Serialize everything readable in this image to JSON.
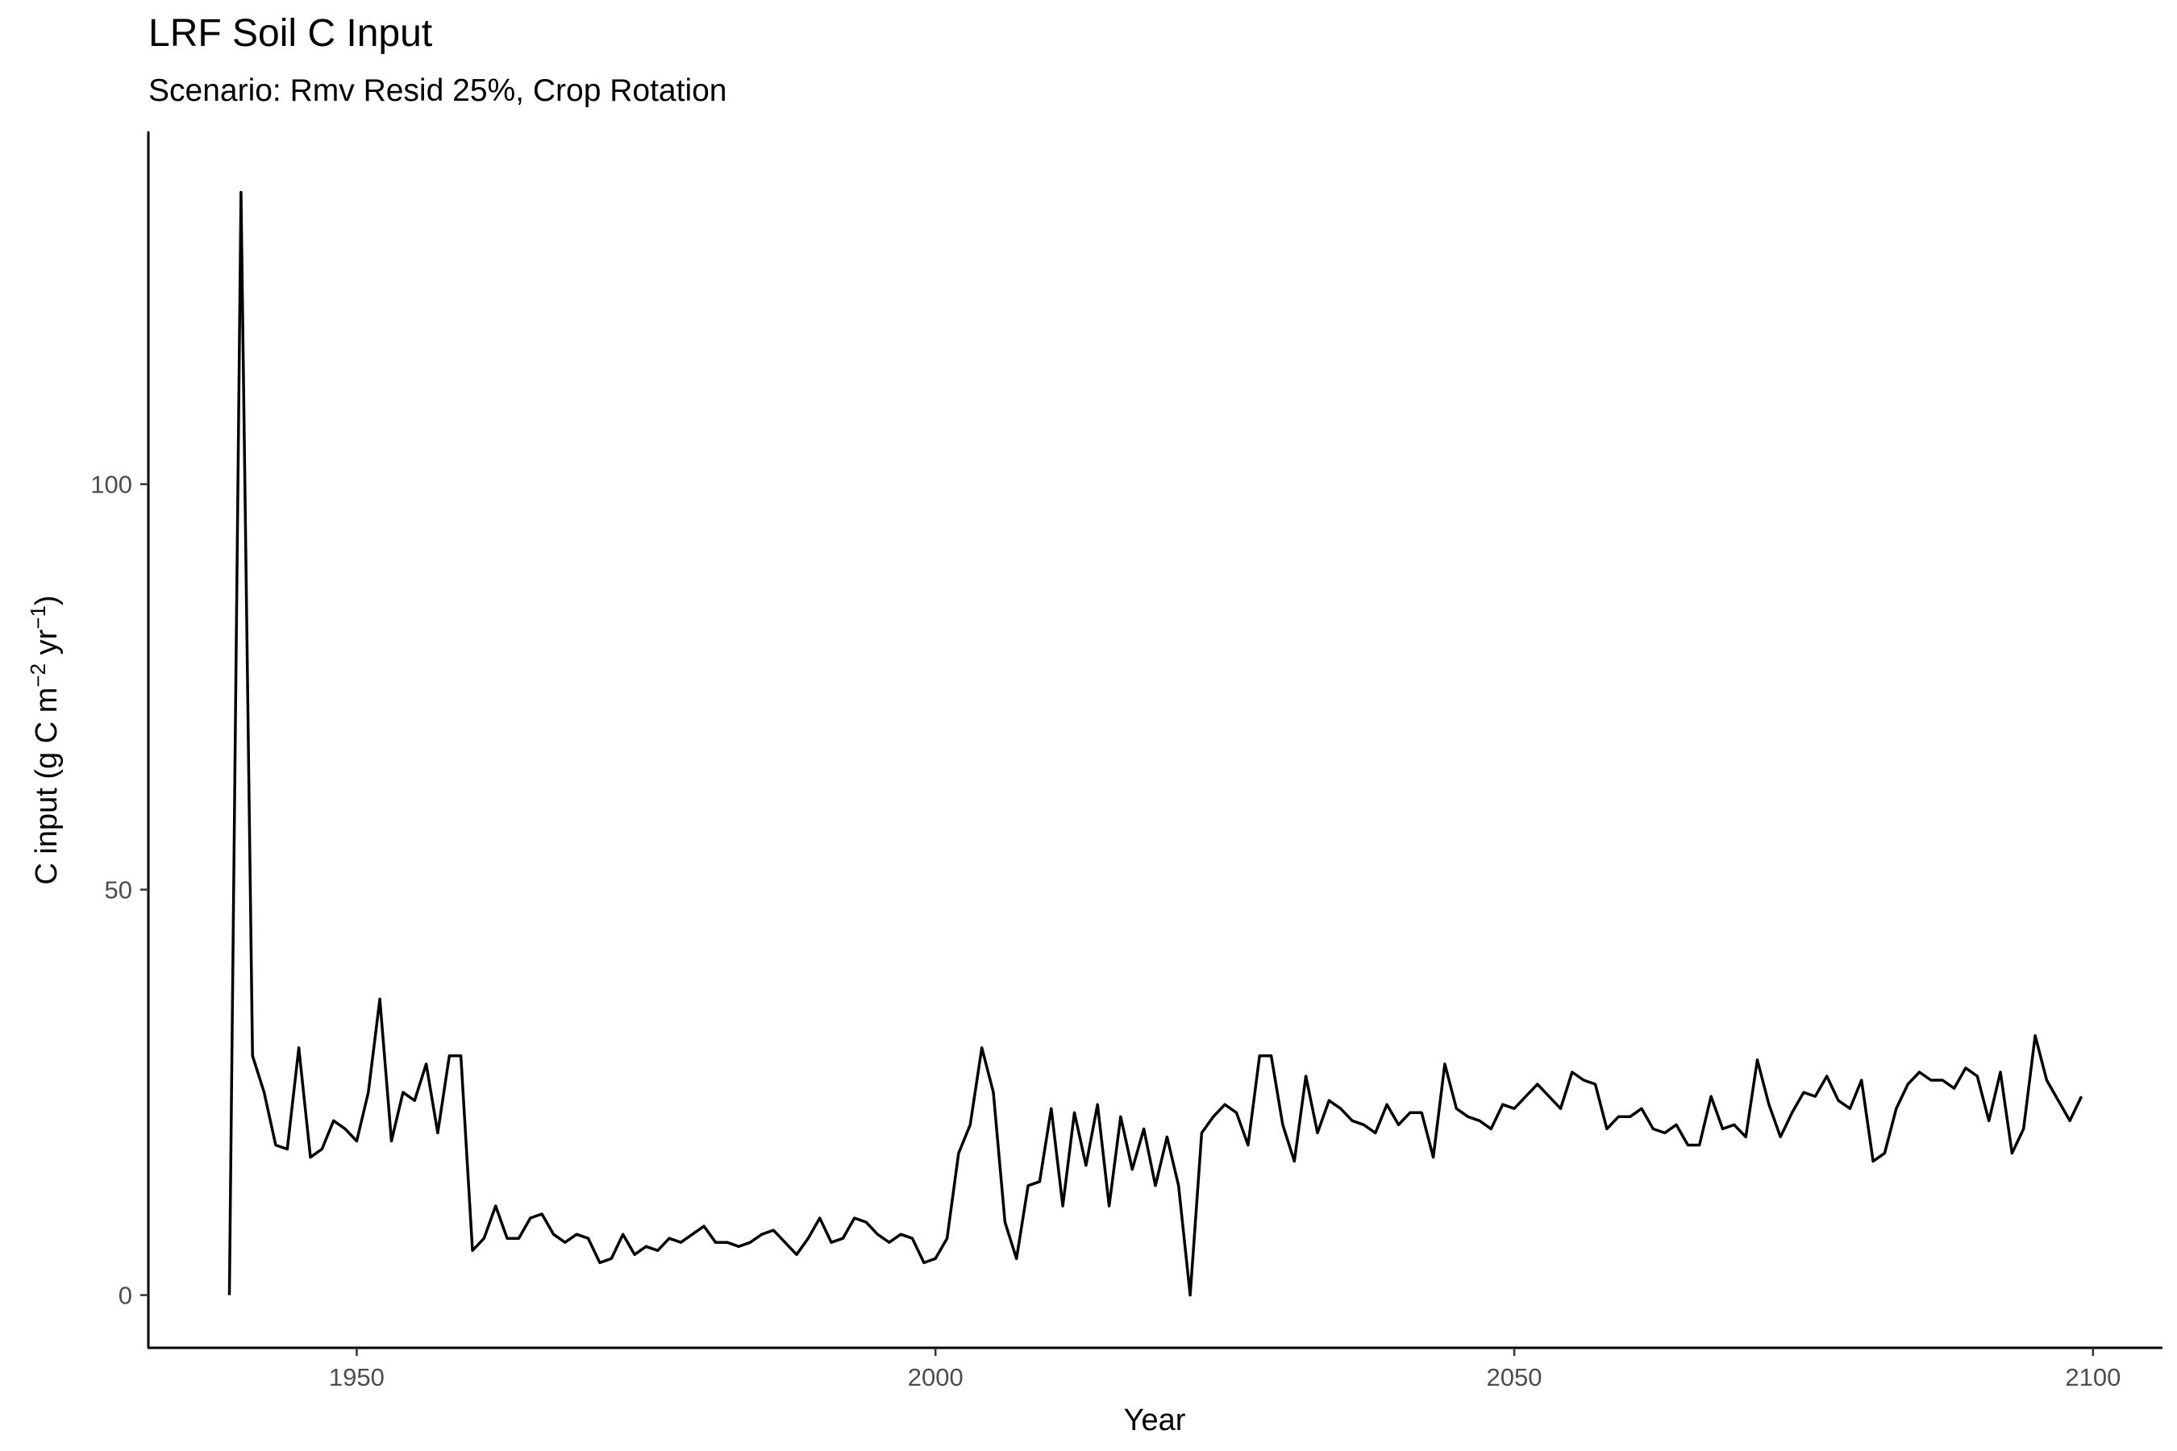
{
  "chart_data": {
    "type": "line",
    "title": "LRF Soil C Input",
    "subtitle": "Scenario: Rmv Resid 25%, Crop Rotation",
    "xlabel": "Year",
    "ylabel_main": "C input (g C m",
    "ylabel_sup1": "−2",
    "ylabel_mid": " yr",
    "ylabel_sup2": "−1",
    "ylabel_end": ")",
    "xlim": [
      1932,
      2106
    ],
    "ylim": [
      -6.5,
      143.5
    ],
    "xticks": [
      1950,
      2000,
      2050,
      2100
    ],
    "yticks": [
      0,
      50,
      100
    ],
    "grid": false,
    "line_color": "#000000",
    "series": [
      {
        "x": [
          1939,
          1940,
          1941,
          1942,
          1943,
          1944,
          1945,
          1946,
          1947,
          1948,
          1949,
          1950,
          1951,
          1952,
          1953,
          1954,
          1955,
          1956,
          1957,
          1958,
          1959,
          1960,
          1961,
          1962,
          1963,
          1964,
          1965,
          1966,
          1967,
          1968,
          1969,
          1970,
          1971,
          1972,
          1973,
          1974,
          1975,
          1976,
          1977,
          1978,
          1979,
          1980,
          1981,
          1982,
          1983,
          1984,
          1985,
          1986,
          1987,
          1988,
          1989,
          1990,
          1991,
          1992,
          1993,
          1994,
          1995,
          1996,
          1997,
          1998,
          1999,
          2000,
          2001,
          2002,
          2003,
          2004,
          2005,
          2006,
          2007,
          2008,
          2009,
          2010,
          2011,
          2012,
          2013,
          2014,
          2015,
          2016,
          2017,
          2018,
          2019,
          2020,
          2021,
          2022,
          2023,
          2024,
          2025,
          2026,
          2027,
          2028,
          2029,
          2030,
          2031,
          2032,
          2033,
          2034,
          2035,
          2036,
          2037,
          2038,
          2039,
          2040,
          2041,
          2042,
          2043,
          2044,
          2045,
          2046,
          2047,
          2048,
          2049,
          2050,
          2051,
          2052,
          2053,
          2054,
          2055,
          2056,
          2057,
          2058,
          2059,
          2060,
          2061,
          2062,
          2063,
          2064,
          2065,
          2066,
          2067,
          2068,
          2069,
          2070,
          2071,
          2072,
          2073,
          2074,
          2075,
          2076,
          2077,
          2078,
          2079,
          2080,
          2081,
          2082,
          2083,
          2084,
          2085,
          2086,
          2087,
          2088,
          2089,
          2090,
          2091,
          2092,
          2093,
          2094,
          2095,
          2096,
          2097,
          2098,
          2099
        ],
        "y": [
          0,
          136,
          29.5,
          25,
          18.5,
          18,
          30.5,
          17,
          18,
          21.5,
          20.5,
          19,
          25,
          36.5,
          19,
          25,
          24,
          28.5,
          20,
          29.5,
          29.5,
          5.5,
          7,
          11,
          7,
          7,
          9.5,
          10,
          7.5,
          6.5,
          7.5,
          7,
          4,
          4.5,
          7.5,
          5,
          6,
          5.5,
          7,
          6.5,
          7.5,
          8.5,
          6.5,
          6.5,
          6,
          6.5,
          7.5,
          8,
          6.5,
          5,
          7,
          9.5,
          6.5,
          7,
          9.5,
          9,
          7.5,
          6.5,
          7.5,
          7,
          4,
          4.5,
          7,
          17.5,
          21,
          30.5,
          25,
          9,
          4.5,
          13.5,
          14,
          23,
          11,
          22.5,
          16,
          23.5,
          11,
          22,
          15.5,
          20.5,
          13.5,
          19.5,
          13.5,
          0,
          20,
          22,
          23.5,
          22.5,
          18.5,
          29.5,
          29.5,
          21,
          16.5,
          27,
          20,
          24,
          23,
          21.5,
          21,
          20,
          23.5,
          21,
          22.5,
          22.5,
          17,
          28.5,
          23,
          22,
          21.5,
          20.5,
          23.5,
          23,
          24.5,
          26,
          24.5,
          23,
          27.5,
          26.5,
          26,
          20.5,
          22,
          22,
          23,
          20.5,
          20,
          21,
          18.5,
          18.5,
          24.5,
          20.5,
          21,
          19.5,
          29,
          23.5,
          19.5,
          22.5,
          25,
          24.5,
          27,
          24,
          23,
          26.5,
          16.5,
          17.5,
          23,
          26,
          27.5,
          26.5,
          26.5,
          25.5,
          28,
          27,
          21.5,
          27.5,
          17.5,
          20.5,
          32,
          26.5,
          24,
          21.5,
          24.5
        ]
      }
    ]
  }
}
